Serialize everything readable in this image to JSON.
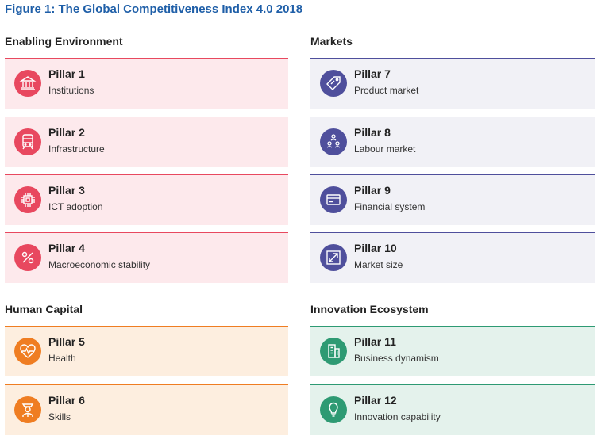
{
  "figure_title": "Figure 1: The Global Competitiveness Index 4.0 2018",
  "groups": [
    {
      "title": "Enabling Environment",
      "color": "#e8485f",
      "pillars": [
        {
          "title": "Pillar 1",
          "subtitle": "Institutions",
          "icon": "institutions-icon"
        },
        {
          "title": "Pillar 2",
          "subtitle": "Infrastructure",
          "icon": "train-icon"
        },
        {
          "title": "Pillar 3",
          "subtitle": "ICT adoption",
          "icon": "chip-icon"
        },
        {
          "title": "Pillar 4",
          "subtitle": "Macroeconomic stability",
          "icon": "percent-icon"
        }
      ]
    },
    {
      "title": "Markets",
      "color": "#4f4f9c",
      "pillars": [
        {
          "title": "Pillar 7",
          "subtitle": "Product market",
          "icon": "price-tag-icon"
        },
        {
          "title": "Pillar 8",
          "subtitle": "Labour market",
          "icon": "people-network-icon"
        },
        {
          "title": "Pillar 9",
          "subtitle": "Financial system",
          "icon": "credit-card-icon"
        },
        {
          "title": "Pillar 10",
          "subtitle": "Market size",
          "icon": "expand-arrows-icon"
        }
      ]
    },
    {
      "title": "Human Capital",
      "color": "#ef7d22",
      "pillars": [
        {
          "title": "Pillar 5",
          "subtitle": "Health",
          "icon": "heart-pulse-icon"
        },
        {
          "title": "Pillar 6",
          "subtitle": "Skills",
          "icon": "graduate-icon"
        }
      ]
    },
    {
      "title": "Innovation Ecosystem",
      "color": "#2e9a73",
      "pillars": [
        {
          "title": "Pillar 11",
          "subtitle": "Business dynamism",
          "icon": "building-icon"
        },
        {
          "title": "Pillar 12",
          "subtitle": "Innovation capability",
          "icon": "lightbulb-icon"
        }
      ]
    }
  ]
}
